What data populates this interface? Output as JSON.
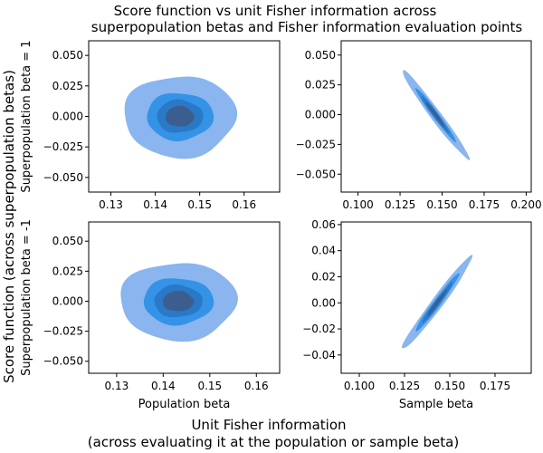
{
  "figure": {
    "title_line1": "Score function vs unit Fisher information across",
    "title_line2": "superpopulation betas and Fisher information evaluation points",
    "ylabel": "Score function (across superpopulation betas)",
    "xlabel_line1": "Unit Fisher information",
    "xlabel_line2": "(across evaluating it at the population or sample beta)"
  },
  "colors": {
    "levels": [
      "#8ab5ee",
      "#3493e6",
      "#2a79c6",
      "#3b5e8e"
    ]
  },
  "chart_data": [
    {
      "id": "top-left",
      "type": "kde-contour",
      "xlabel": "",
      "ylabel": "Superpopulation beta = 1",
      "xlim": [
        0.125,
        0.168
      ],
      "ylim": [
        -0.062,
        0.062
      ],
      "xticks": [
        0.13,
        0.14,
        0.15,
        0.16
      ],
      "xtick_labels": [
        "0.13",
        "0.14",
        "0.15",
        "0.16"
      ],
      "yticks": [
        -0.05,
        -0.025,
        0.0,
        0.025,
        0.05
      ],
      "ytick_labels": [
        "−0.050",
        "−0.025",
        "0.000",
        "0.025",
        "0.050"
      ],
      "center": [
        0.1455,
        0.0
      ],
      "levels": [
        {
          "rx": 0.0126,
          "ry": 0.0335,
          "angle": 0
        },
        {
          "rx": 0.0075,
          "ry": 0.0195,
          "angle": 0
        },
        {
          "rx": 0.0052,
          "ry": 0.0135,
          "angle": 0
        },
        {
          "rx": 0.0032,
          "ry": 0.0085,
          "angle": 0
        }
      ]
    },
    {
      "id": "top-right",
      "type": "kde-contour",
      "xlabel": "",
      "ylabel": "",
      "xlim": [
        0.09,
        0.203
      ],
      "ylim": [
        -0.065,
        0.062
      ],
      "xticks": [
        0.1,
        0.125,
        0.15,
        0.175,
        0.2
      ],
      "xtick_labels": [
        "0.100",
        "0.125",
        "0.150",
        "0.175",
        "0.200"
      ],
      "yticks": [
        -0.05,
        -0.025,
        0.0,
        0.025,
        0.05
      ],
      "ytick_labels": [
        "−0.050",
        "−0.025",
        "0.000",
        "0.025",
        "0.050"
      ],
      "center": [
        0.146,
        0.0
      ],
      "levels": [
        {
          "rx": 0.033,
          "ry": 0.0045,
          "angle": -0.93
        },
        {
          "rx": 0.02,
          "ry": 0.0027,
          "angle": -0.93
        },
        {
          "rx": 0.014,
          "ry": 0.0019,
          "angle": -0.93
        },
        {
          "rx": 0.009,
          "ry": 0.0012,
          "angle": -0.93
        }
      ]
    },
    {
      "id": "bottom-left",
      "type": "kde-contour",
      "xlabel": "Population beta",
      "ylabel": "Superpopulation beta = -1",
      "xlim": [
        0.124,
        0.165
      ],
      "ylim": [
        -0.06,
        0.066
      ],
      "xticks": [
        0.13,
        0.14,
        0.15,
        0.16
      ],
      "xtick_labels": [
        "0.13",
        "0.14",
        "0.15",
        "0.16"
      ],
      "yticks": [
        -0.05,
        -0.025,
        0.0,
        0.025,
        0.05
      ],
      "ytick_labels": [
        "−0.050",
        "−0.025",
        "0.000",
        "0.025",
        "0.050"
      ],
      "center": [
        0.1432,
        0.0
      ],
      "levels": [
        {
          "rx": 0.0125,
          "ry": 0.0325,
          "angle": 0
        },
        {
          "rx": 0.0075,
          "ry": 0.0195,
          "angle": 0
        },
        {
          "rx": 0.0052,
          "ry": 0.0135,
          "angle": 0
        },
        {
          "rx": 0.0033,
          "ry": 0.0085,
          "angle": 0
        }
      ]
    },
    {
      "id": "bottom-right",
      "type": "kde-contour",
      "xlabel": "Sample beta",
      "ylabel": "",
      "xlim": [
        0.09,
        0.195
      ],
      "ylim": [
        -0.054,
        0.062
      ],
      "xticks": [
        0.1,
        0.125,
        0.15,
        0.175
      ],
      "xtick_labels": [
        "0.100",
        "0.125",
        "0.150",
        "0.175"
      ],
      "yticks": [
        -0.04,
        -0.02,
        0.0,
        0.02,
        0.04,
        0.06
      ],
      "ytick_labels": [
        "−0.04",
        "−0.02",
        "0.00",
        "0.02",
        "0.04",
        "0.06"
      ],
      "center": [
        0.143,
        0.0
      ],
      "levels": [
        {
          "rx": 0.032,
          "ry": 0.0045,
          "angle": 0.93
        },
        {
          "rx": 0.02,
          "ry": 0.0028,
          "angle": 0.93
        },
        {
          "rx": 0.014,
          "ry": 0.0019,
          "angle": 0.93
        },
        {
          "rx": 0.009,
          "ry": 0.0012,
          "angle": 0.93
        }
      ]
    }
  ]
}
